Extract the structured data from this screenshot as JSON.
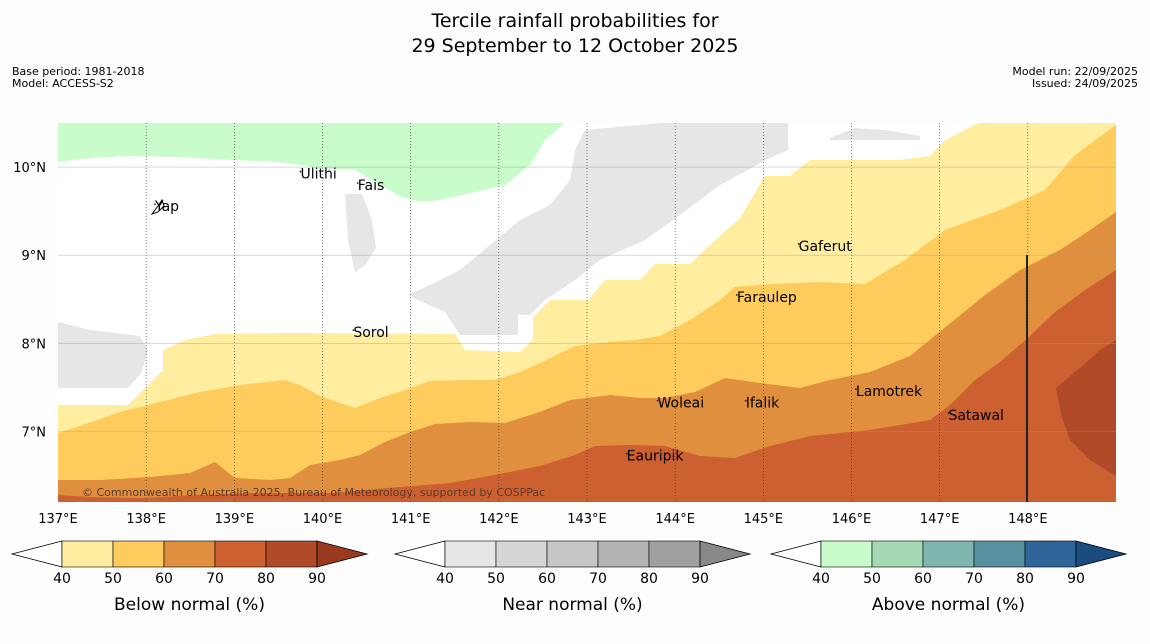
{
  "title_line1": "Tercile rainfall probabilities for",
  "title_line2": "29 September to 12 October 2025",
  "meta_left": [
    "Base period: 1981-2018",
    "Model: ACCESS-S2"
  ],
  "meta_right": [
    "Model run: 22/09/2025",
    "Issued: 24/09/2025"
  ],
  "map": {
    "lon_range": [
      137,
      149
    ],
    "lat_range": [
      6.2,
      10.5
    ],
    "lon_ticks": [
      "137°E",
      "138°E",
      "139°E",
      "140°E",
      "141°E",
      "142°E",
      "143°E",
      "144°E",
      "145°E",
      "146°E",
      "147°E",
      "148°E"
    ],
    "lat_ticks": [
      "10°N",
      "9°N",
      "8°N",
      "7°N"
    ],
    "places": [
      {
        "name": "Ulithi",
        "lon": 139.75,
        "lat": 9.87
      },
      {
        "name": "Fais",
        "lon": 140.4,
        "lat": 9.74
      },
      {
        "name": "Yap",
        "lon": 138.1,
        "lat": 9.5
      },
      {
        "name": "Gaferut",
        "lon": 145.4,
        "lat": 9.05
      },
      {
        "name": "Faraulep",
        "lon": 144.7,
        "lat": 8.47
      },
      {
        "name": "Sorol",
        "lon": 140.35,
        "lat": 8.07
      },
      {
        "name": "Lamotrek",
        "lon": 146.05,
        "lat": 7.4
      },
      {
        "name": "Woleai",
        "lon": 143.8,
        "lat": 7.27
      },
      {
        "name": "Ifalik",
        "lon": 144.8,
        "lat": 7.27
      },
      {
        "name": "Satawal",
        "lon": 147.1,
        "lat": 7.13
      },
      {
        "name": "Eauripik",
        "lon": 143.45,
        "lat": 6.67
      }
    ],
    "copyright": "© Commonwealth of Australia 2025, Bureau of Meteorology, supported by COSPPac"
  },
  "colorbars": [
    {
      "label": "Below normal (%)",
      "ticks": [
        "40",
        "50",
        "60",
        "70",
        "80",
        "90"
      ],
      "colors": [
        "#ffeda0",
        "#fecc5c",
        "#e08f3f",
        "#cc6030",
        "#b04a28"
      ],
      "over": "#9a3a1e"
    },
    {
      "label": "Near normal (%)",
      "ticks": [
        "40",
        "50",
        "60",
        "70",
        "80",
        "90"
      ],
      "colors": [
        "#e6e6e6",
        "#d6d6d6",
        "#c6c6c6",
        "#b4b4b4",
        "#a0a0a0"
      ],
      "over": "#888888"
    },
    {
      "label": "Above normal (%)",
      "ticks": [
        "40",
        "50",
        "60",
        "70",
        "80",
        "90"
      ],
      "colors": [
        "#c8fcca",
        "#a5d8b5",
        "#80b6b0",
        "#5892a0",
        "#2f6498"
      ],
      "over": "#1a4c80"
    }
  ],
  "region_colors": {
    "below_40_50": "#ffeda0",
    "below_50_60": "#fecc5c",
    "below_60_70": "#e08f3f",
    "below_70_80": "#cc6030",
    "below_80_90": "#b04a28",
    "near_40_50": "#e6e6e6",
    "above_40_50": "#c8fcca"
  }
}
